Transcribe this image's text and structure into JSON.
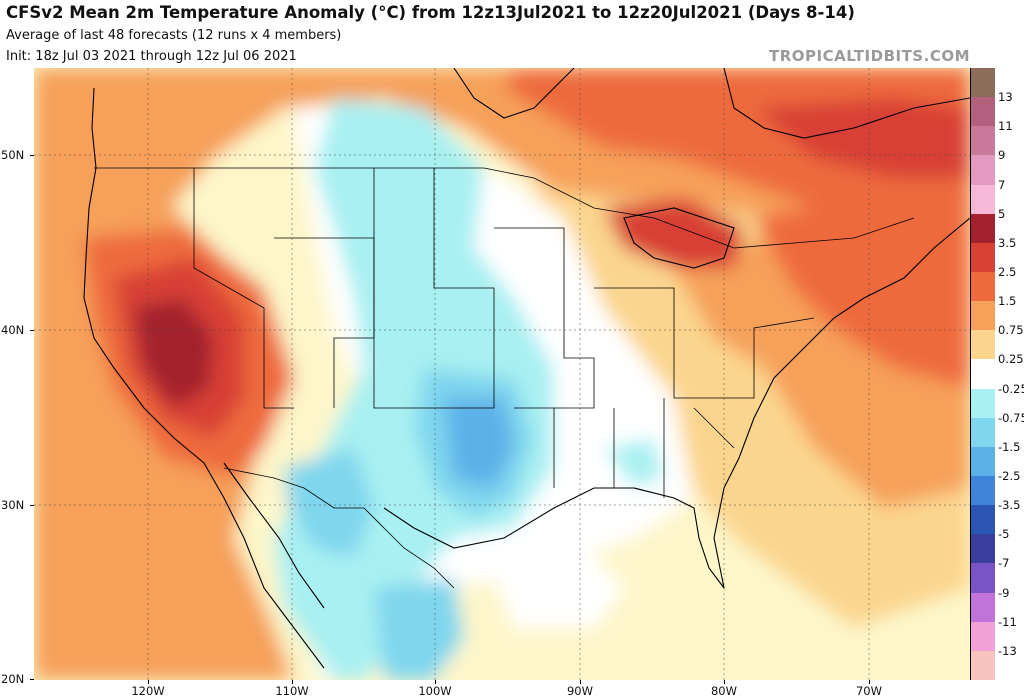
{
  "header": {
    "title": "CFSv2 Mean 2m Temperature Anomaly (°C) from 12z13Jul2021 to 12z20Jul2021 (Days 8-14)",
    "subtitle": "Average of last 48 forecasts (12 runs x 4 members)",
    "init": "Init: 18z Jul 03 2021 through 12z Jul 06 2021",
    "brand": "TROPICALTIDBITS.COM"
  },
  "axes": {
    "lat_labels": [
      "50N",
      "40N",
      "30N",
      "20N"
    ],
    "lon_labels": [
      "120W",
      "110W",
      "100W",
      "90W",
      "80W",
      "70W"
    ]
  },
  "legend": {
    "labels": [
      "13",
      "11",
      "9",
      "7",
      "5",
      "3.5",
      "2.5",
      "1.5",
      "0.75",
      "0.25",
      "-0.25",
      "-0.75",
      "-1.5",
      "-2.5",
      "-3.5",
      "-5",
      "-7",
      "-9",
      "-11",
      "-13"
    ],
    "colors": [
      "#8c6d5a",
      "#b3607e",
      "#c97a9b",
      "#e29ac0",
      "#f6b8d6",
      "#a3202f",
      "#d84134",
      "#ee6a3c",
      "#f6a05a",
      "#fbd58e",
      "#ffffff",
      "#a9f0f2",
      "#7fd6ee",
      "#5bb0e8",
      "#3f84db",
      "#2b56b4",
      "#3a3e9c",
      "#7a54c6",
      "#c073d9",
      "#f0a2d8",
      "#f9c4bf"
    ]
  },
  "map": {
    "colors": {
      "ocean_base": "#fdf6c9",
      "warm_weak": "#fbd58e",
      "warm_mod": "#f6a05a",
      "warm_strong": "#ee6a3c",
      "hot": "#d84134",
      "very_hot": "#a3202f",
      "neutral": "#ffffff",
      "cool_weak": "#a9f0f2",
      "cool_mod": "#7fd6ee",
      "cool_strong": "#5bb0e8"
    }
  }
}
